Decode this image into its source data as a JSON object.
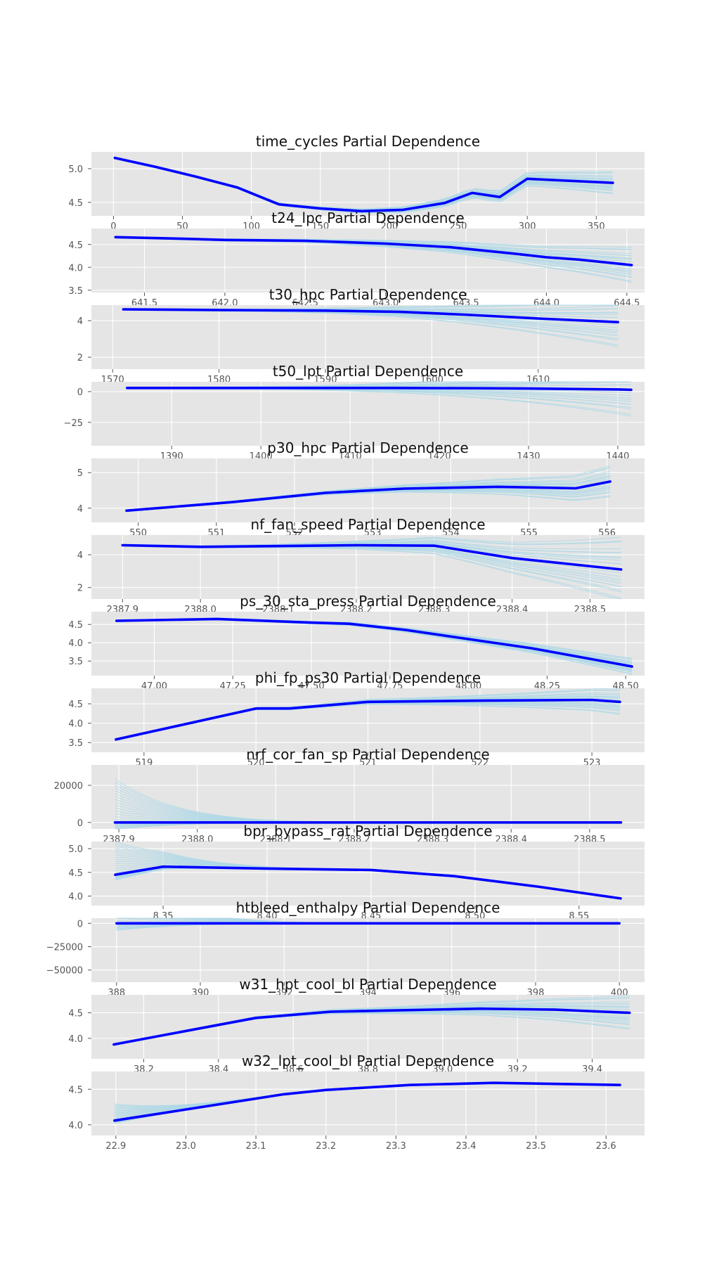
{
  "figure": {
    "background": "#ffffff",
    "panel_color": "#e5e5e5",
    "grid_color": "#ffffff",
    "ice_color": "#add8e6",
    "pd_color": "#0000ff",
    "title_suffix": "Partial Dependence"
  },
  "chart_data": [
    {
      "type": "line",
      "feature": "time_cycles",
      "title": "time_cycles Partial Dependence",
      "xlim": [
        -16,
        385
      ],
      "ylim": [
        4.3,
        5.25
      ],
      "xticks": [
        0,
        50,
        100,
        150,
        200,
        250,
        300,
        350
      ],
      "xtick_labels": [
        "0",
        "50",
        "100",
        "150",
        "200",
        "250",
        "300",
        "350"
      ],
      "yticks": [
        4.5,
        5.0
      ],
      "ytick_labels": [
        "4.5",
        "5.0"
      ],
      "x": [
        1,
        30,
        60,
        90,
        120,
        150,
        180,
        210,
        240,
        260,
        280,
        300,
        320,
        340,
        362
      ],
      "pd": [
        5.16,
        5.03,
        4.88,
        4.72,
        4.47,
        4.41,
        4.37,
        4.39,
        4.49,
        4.64,
        4.58,
        4.85,
        4.83,
        4.81,
        4.79
      ],
      "ice_end_spread": 0.3
    },
    {
      "type": "line",
      "feature": "t24_lpc",
      "title": "t24_lpc Partial Dependence",
      "xlim": [
        641.17,
        644.61
      ],
      "ylim": [
        3.45,
        4.85
      ],
      "xticks": [
        641.5,
        642.0,
        642.5,
        643.0,
        643.5,
        644.0,
        644.5
      ],
      "xtick_labels": [
        "641.5",
        "642.0",
        "642.5",
        "643.0",
        "643.5",
        "644.0",
        "644.5"
      ],
      "yticks": [
        3.5,
        4.0,
        4.5
      ],
      "ytick_labels": [
        "3.5",
        "4.0",
        "4.5"
      ],
      "x": [
        641.32,
        641.8,
        642.0,
        642.5,
        643.0,
        643.4,
        643.8,
        644.0,
        644.2,
        644.53
      ],
      "pd": [
        4.66,
        4.62,
        4.6,
        4.58,
        4.52,
        4.44,
        4.3,
        4.22,
        4.17,
        4.05
      ],
      "ice_end_spread": 0.7
    },
    {
      "type": "line",
      "feature": "t30_hpc",
      "title": "t30_hpc Partial Dependence",
      "xlim": [
        1568,
        1620
      ],
      "ylim": [
        1.35,
        4.85
      ],
      "xticks": [
        1570,
        1580,
        1590,
        1600,
        1610
      ],
      "xtick_labels": [
        "1570",
        "1580",
        "1590",
        "1600",
        "1610"
      ],
      "yticks": [
        2,
        4
      ],
      "ytick_labels": [
        "2",
        "4"
      ],
      "x": [
        1571,
        1580,
        1590,
        1597,
        1603,
        1610,
        1617.5
      ],
      "pd": [
        4.62,
        4.58,
        4.55,
        4.48,
        4.33,
        4.12,
        3.92
      ],
      "ice_end_spread": 2.5
    },
    {
      "type": "line",
      "feature": "t50_lpt",
      "title": "t50_lpt Partial Dependence",
      "xlim": [
        1381,
        1443
      ],
      "ylim": [
        -44,
        8
      ],
      "xticks": [
        1390,
        1400,
        1410,
        1420,
        1430,
        1440
      ],
      "xtick_labels": [
        "1390",
        "1400",
        "1410",
        "1420",
        "1430",
        "1440"
      ],
      "yticks": [
        -25,
        0
      ],
      "ytick_labels": [
        "−25",
        "0"
      ],
      "x": [
        1385,
        1400,
        1415,
        1430,
        1440,
        1441.5
      ],
      "pd": [
        3,
        3,
        3,
        2.5,
        1.8,
        1.5
      ],
      "ice_end_spread": 40
    },
    {
      "type": "line",
      "feature": "p30_hpc",
      "title": "p30_hpc Partial Dependence",
      "xlim": [
        549.4,
        556.48
      ],
      "ylim": [
        3.6,
        5.4
      ],
      "xticks": [
        550,
        551,
        552,
        553,
        554,
        555,
        556
      ],
      "xtick_labels": [
        "550",
        "551",
        "552",
        "553",
        "554",
        "555",
        "556"
      ],
      "yticks": [
        4,
        5
      ],
      "ytick_labels": [
        "4",
        "5"
      ],
      "x": [
        549.85,
        551.2,
        552.4,
        553.4,
        554.6,
        555.6,
        556.04
      ],
      "pd": [
        3.93,
        4.17,
        4.43,
        4.55,
        4.6,
        4.56,
        4.75
      ],
      "ice_end_spread": 0.8
    },
    {
      "type": "line",
      "feature": "nf_fan_speed",
      "title": "nf_fan_speed Partial Dependence",
      "xlim": [
        2387.86,
        2388.57
      ],
      "ylim": [
        1.3,
        5.2
      ],
      "xticks": [
        2387.9,
        2388.0,
        2388.1,
        2388.2,
        2388.3,
        2388.4,
        2388.5
      ],
      "xtick_labels": [
        "2387.9",
        "2388.0",
        "2388.1",
        "2388.2",
        "2388.3",
        "2388.4",
        "2388.5"
      ],
      "yticks": [
        2,
        4
      ],
      "ytick_labels": [
        "2",
        "4"
      ],
      "x": [
        2387.9,
        2388.0,
        2388.2,
        2388.3,
        2388.4,
        2388.54
      ],
      "pd": [
        4.58,
        4.48,
        4.58,
        4.55,
        3.8,
        3.1
      ],
      "ice_end_spread": 3.5
    },
    {
      "type": "line",
      "feature": "ps_30_sta_press",
      "title": "ps_30_sta_press Partial Dependence",
      "xlim": [
        46.8,
        48.56
      ],
      "ylim": [
        3.1,
        4.85
      ],
      "xticks": [
        47.0,
        47.25,
        47.5,
        47.75,
        48.0,
        48.25,
        48.5
      ],
      "xtick_labels": [
        "47.00",
        "47.25",
        "47.50",
        "47.75",
        "48.00",
        "48.25",
        "48.50"
      ],
      "yticks": [
        3.5,
        4.0,
        4.5
      ],
      "ytick_labels": [
        "3.5",
        "4.0",
        "4.5"
      ],
      "x": [
        46.88,
        47.2,
        47.5,
        47.62,
        47.8,
        48.2,
        48.52
      ],
      "pd": [
        4.6,
        4.65,
        4.55,
        4.52,
        4.35,
        3.85,
        3.35
      ],
      "ice_end_spread": 0.4
    },
    {
      "type": "line",
      "feature": "phi_fp_ps30",
      "title": "phi_fp_ps30 Partial Dependence",
      "xlim": [
        518.53,
        523.47
      ],
      "ylim": [
        3.25,
        4.9
      ],
      "xticks": [
        519,
        520,
        521,
        522,
        523
      ],
      "xtick_labels": [
        "519",
        "520",
        "521",
        "522",
        "523"
      ],
      "yticks": [
        3.5,
        4.0,
        4.5
      ],
      "ytick_labels": [
        "3.5",
        "4.0",
        "4.5"
      ],
      "x": [
        518.75,
        520.0,
        520.3,
        521.0,
        522.0,
        523.0,
        523.25
      ],
      "pd": [
        3.58,
        4.38,
        4.38,
        4.55,
        4.58,
        4.6,
        4.55
      ],
      "ice_end_spread": 0.6
    },
    {
      "type": "line",
      "feature": "nrf_cor_fan_sp",
      "title": "nrf_cor_fan_sp Partial Dependence",
      "xlim": [
        2387.865,
        2388.57
      ],
      "ylim": [
        -3500,
        31000
      ],
      "xticks": [
        2387.9,
        2388.0,
        2388.1,
        2388.2,
        2388.3,
        2388.4,
        2388.5
      ],
      "xtick_labels": [
        "2387.9",
        "2388.0",
        "2388.1",
        "2388.2",
        "2388.3",
        "2388.4",
        "2388.5"
      ],
      "yticks": [
        0,
        20000
      ],
      "ytick_labels": [
        "0",
        "20000"
      ],
      "x": [
        2387.895,
        2388.0,
        2388.2,
        2388.4,
        2388.54
      ],
      "pd": [
        0,
        0,
        0,
        0,
        0
      ],
      "ice_start_spread": 30000
    },
    {
      "type": "line",
      "feature": "bpr_bypass_rat",
      "title": "bpr_bypass_rat Partial Dependence",
      "xlim": [
        8.3155,
        8.5815
      ],
      "ylim": [
        3.8,
        5.15
      ],
      "xticks": [
        8.35,
        8.4,
        8.45,
        8.5,
        8.55
      ],
      "xtick_labels": [
        "8.35",
        "8.40",
        "8.45",
        "8.50",
        "8.55"
      ],
      "yticks": [
        4.0,
        4.5,
        5.0
      ],
      "ytick_labels": [
        "4.0",
        "4.5",
        "5.0"
      ],
      "x": [
        8.327,
        8.35,
        8.4,
        8.45,
        8.49,
        8.53,
        8.57
      ],
      "pd": [
        4.45,
        4.62,
        4.58,
        4.55,
        4.42,
        4.2,
        3.95
      ],
      "ice_start_spread": 0.9
    },
    {
      "type": "line",
      "feature": "htbleed_enthalpy",
      "title": "htbleed_enthalpy Partial Dependence",
      "xlim": [
        387.4,
        400.6
      ],
      "ylim": [
        -63000,
        5500
      ],
      "xticks": [
        388,
        390,
        392,
        394,
        396,
        398,
        400
      ],
      "xtick_labels": [
        "388",
        "390",
        "392",
        "394",
        "396",
        "398",
        "400"
      ],
      "yticks": [
        -50000,
        -25000,
        0
      ],
      "ytick_labels": [
        "−50000",
        "−25000",
        "0"
      ],
      "x": [
        388,
        389,
        392,
        396,
        400
      ],
      "pd": [
        0,
        0,
        0,
        0,
        0
      ],
      "ice_start_spread": 60000
    },
    {
      "type": "line",
      "feature": "w31_hpt_cool_bl",
      "title": "w31_hpt_cool_bl Partial Dependence",
      "xlim": [
        38.06,
        39.54
      ],
      "ylim": [
        3.6,
        4.85
      ],
      "xticks": [
        38.2,
        38.4,
        38.6,
        38.8,
        39.0,
        39.2,
        39.4
      ],
      "xtick_labels": [
        "38.2",
        "38.4",
        "38.6",
        "38.8",
        "39.0",
        "39.2",
        "39.4"
      ],
      "yticks": [
        4.0,
        4.5
      ],
      "ytick_labels": [
        "4.0",
        "4.5"
      ],
      "x": [
        38.12,
        38.5,
        38.7,
        38.9,
        39.1,
        39.3,
        39.5
      ],
      "pd": [
        3.88,
        4.4,
        4.52,
        4.55,
        4.58,
        4.56,
        4.5
      ],
      "ice_end_spread": 0.6
    },
    {
      "type": "line",
      "feature": "w32_lpt_cool_bl",
      "title": "w32_lpt_cool_bl Partial Dependence",
      "xlim": [
        22.865,
        23.655
      ],
      "ylim": [
        3.85,
        4.75
      ],
      "xticks": [
        22.9,
        23.0,
        23.1,
        23.2,
        23.3,
        23.4,
        23.5,
        23.6
      ],
      "xtick_labels": [
        "22.9",
        "23.0",
        "23.1",
        "23.2",
        "23.3",
        "23.4",
        "23.5",
        "23.6"
      ],
      "yticks": [
        4.0,
        4.5
      ],
      "ytick_labels": [
        "4.0",
        "4.5"
      ],
      "x": [
        22.898,
        23.14,
        23.2,
        23.32,
        23.44,
        23.62
      ],
      "pd": [
        4.06,
        4.43,
        4.49,
        4.56,
        4.59,
        4.56
      ],
      "ice_start_spread": 0.3
    }
  ]
}
